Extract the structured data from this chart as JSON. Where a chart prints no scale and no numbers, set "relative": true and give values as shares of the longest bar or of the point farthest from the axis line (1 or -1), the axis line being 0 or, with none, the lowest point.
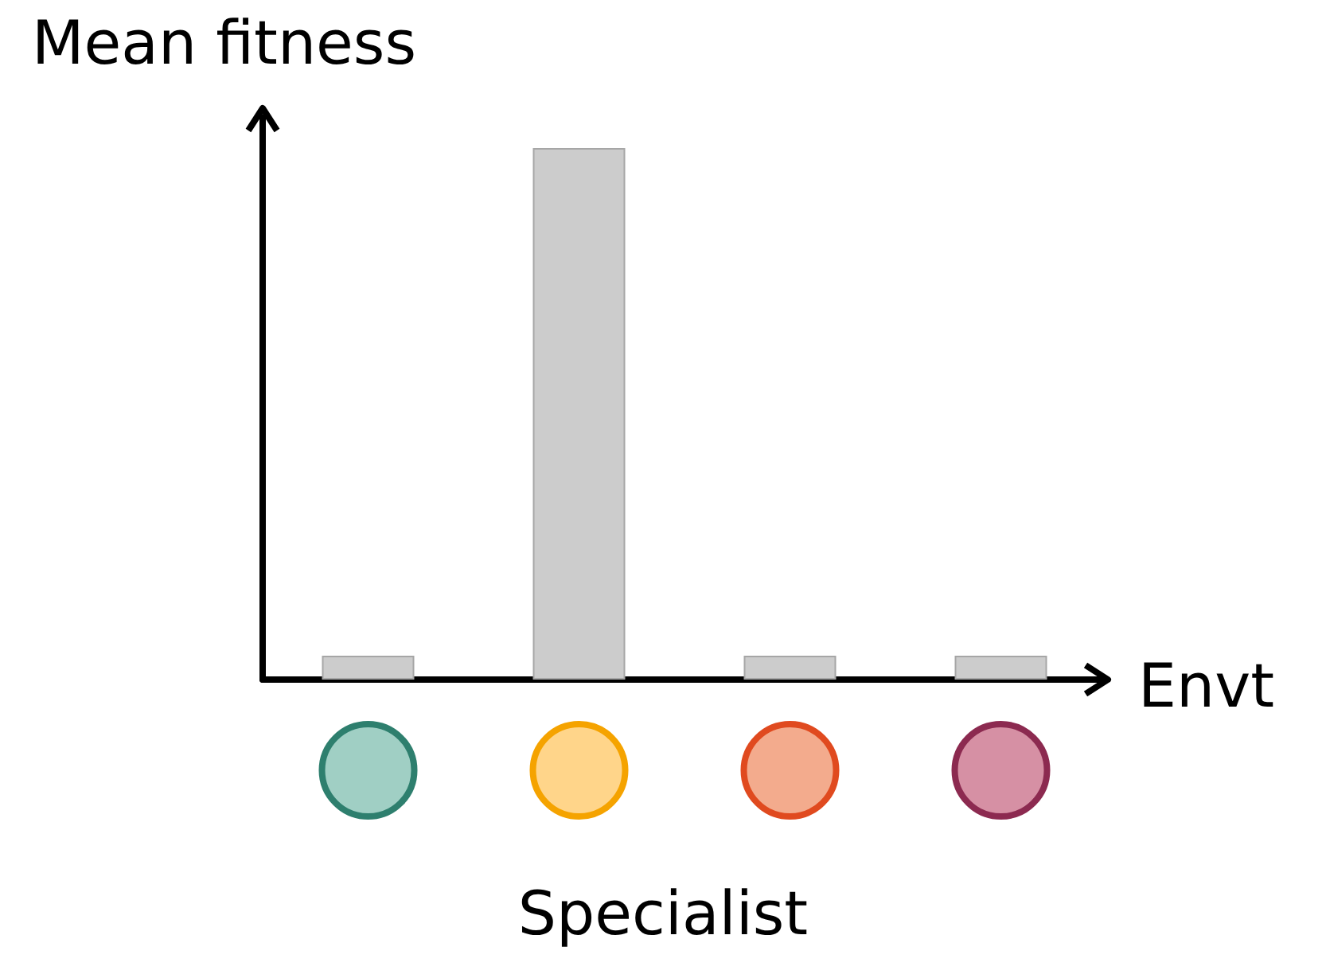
{
  "chart_data": {
    "type": "bar",
    "title": "Specialist",
    "xlabel": "Envt",
    "ylabel": "Mean fitness",
    "categories": [
      null,
      null,
      null,
      null
    ],
    "relative": true,
    "series": [
      {
        "color": "#cccccc",
        "values": [
          0.045,
          1,
          0.045,
          0.045
        ]
      }
    ],
    "grid": false
  }
}
